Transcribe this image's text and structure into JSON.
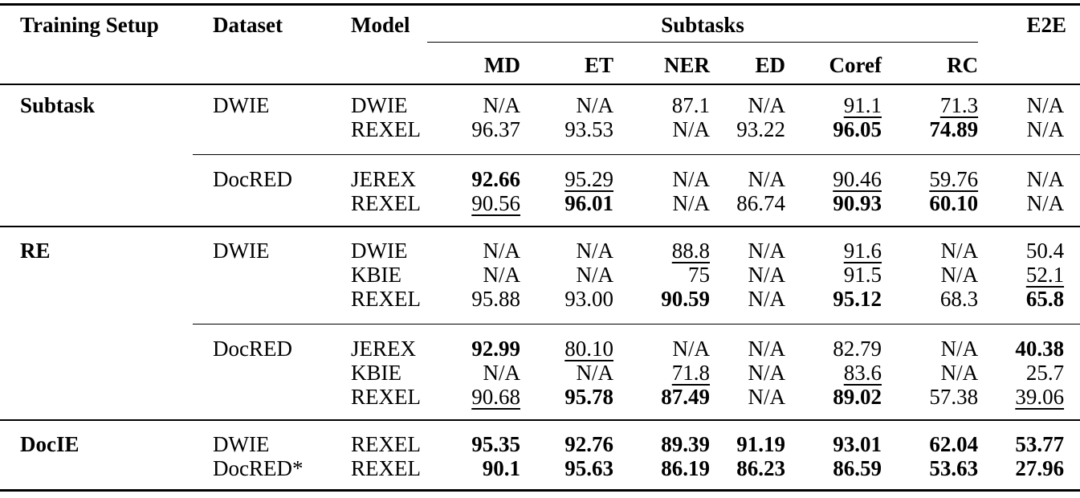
{
  "table": {
    "headers": {
      "training_setup": "Training Setup",
      "dataset": "Dataset",
      "model": "Model",
      "subtasks": "Subtasks",
      "e2e": "E2E",
      "subtask_columns": [
        "MD",
        "ET",
        "NER",
        "ED",
        "Coref",
        "RC"
      ]
    },
    "rows": [
      {
        "training_setup": "Subtask",
        "dataset": "DWIE",
        "model": "DWIE",
        "md": "N/A",
        "et": "N/A",
        "ner": "87.1",
        "ed": "N/A",
        "coref": "91.1",
        "rc": "71.3",
        "e2e": "N/A",
        "styles": {
          "coref": "underline",
          "rc": "underline"
        }
      },
      {
        "training_setup": "",
        "dataset": "",
        "model": "REXEL",
        "md": "96.37",
        "et": "93.53",
        "ner": "N/A",
        "ed": "93.22",
        "coref": "96.05",
        "rc": "74.89",
        "e2e": "N/A",
        "styles": {
          "coref": "bold",
          "rc": "bold"
        }
      },
      {
        "training_setup": "",
        "dataset": "DocRED",
        "model": "JEREX",
        "md": "92.66",
        "et": "95.29",
        "ner": "N/A",
        "ed": "N/A",
        "coref": "90.46",
        "rc": "59.76",
        "e2e": "N/A",
        "styles": {
          "md": "bold",
          "et": "underline",
          "coref": "underline",
          "rc": "underline"
        }
      },
      {
        "training_setup": "",
        "dataset": "",
        "model": "REXEL",
        "md": "90.56",
        "et": "96.01",
        "ner": "N/A",
        "ed": "86.74",
        "coref": "90.93",
        "rc": "60.10",
        "e2e": "N/A",
        "styles": {
          "md": "underline",
          "et": "bold",
          "coref": "bold",
          "rc": "bold"
        }
      },
      {
        "training_setup": "RE",
        "dataset": "DWIE",
        "model": "DWIE",
        "md": "N/A",
        "et": "N/A",
        "ner": "88.8",
        "ed": "N/A",
        "coref": "91.6",
        "rc": "N/A",
        "e2e": "50.4",
        "styles": {
          "ner": "underline",
          "coref": "underline"
        }
      },
      {
        "training_setup": "",
        "dataset": "",
        "model": "KBIE",
        "md": "N/A",
        "et": "N/A",
        "ner": "75",
        "ed": "N/A",
        "coref": "91.5",
        "rc": "N/A",
        "e2e": "52.1",
        "styles": {
          "e2e": "underline"
        }
      },
      {
        "training_setup": "",
        "dataset": "",
        "model": "REXEL",
        "md": "95.88",
        "et": "93.00",
        "ner": "90.59",
        "ed": "N/A",
        "coref": "95.12",
        "rc": "68.3",
        "e2e": "65.8",
        "styles": {
          "ner": "bold",
          "coref": "bold",
          "e2e": "bold"
        }
      },
      {
        "training_setup": "",
        "dataset": "DocRED",
        "model": "JEREX",
        "md": "92.99",
        "et": "80.10",
        "ner": "N/A",
        "ed": "N/A",
        "coref": "82.79",
        "rc": "N/A",
        "e2e": "40.38",
        "styles": {
          "md": "bold",
          "et": "underline",
          "e2e": "bold"
        }
      },
      {
        "training_setup": "",
        "dataset": "",
        "model": "KBIE",
        "md": "N/A",
        "et": "N/A",
        "ner": "71.8",
        "ed": "N/A",
        "coref": "83.6",
        "rc": "N/A",
        "e2e": "25.7",
        "styles": {
          "ner": "underline",
          "coref": "underline"
        }
      },
      {
        "training_setup": "",
        "dataset": "",
        "model": "REXEL",
        "md": "90.68",
        "et": "95.78",
        "ner": "87.49",
        "ed": "N/A",
        "coref": "89.02",
        "rc": "57.38",
        "e2e": "39.06",
        "styles": {
          "md": "underline",
          "et": "bold",
          "ner": "bold",
          "coref": "bold",
          "e2e": "underline"
        }
      },
      {
        "training_setup": "DocIE",
        "dataset": "DWIE",
        "model": "REXEL",
        "md": "95.35",
        "et": "92.76",
        "ner": "89.39",
        "ed": "91.19",
        "coref": "93.01",
        "rc": "62.04",
        "e2e": "53.77",
        "styles": {
          "md": "bold",
          "et": "bold",
          "ner": "bold",
          "ed": "bold",
          "coref": "bold",
          "rc": "bold",
          "e2e": "bold"
        }
      },
      {
        "training_setup": "",
        "dataset": "DocRED*",
        "model": "REXEL",
        "md": "90.1",
        "et": "95.63",
        "ner": "86.19",
        "ed": "86.23",
        "coref": "86.59",
        "rc": "53.63",
        "e2e": "27.96",
        "styles": {
          "md": "bold",
          "et": "bold",
          "ner": "bold",
          "ed": "bold",
          "coref": "bold",
          "rc": "bold",
          "e2e": "bold"
        }
      }
    ]
  }
}
